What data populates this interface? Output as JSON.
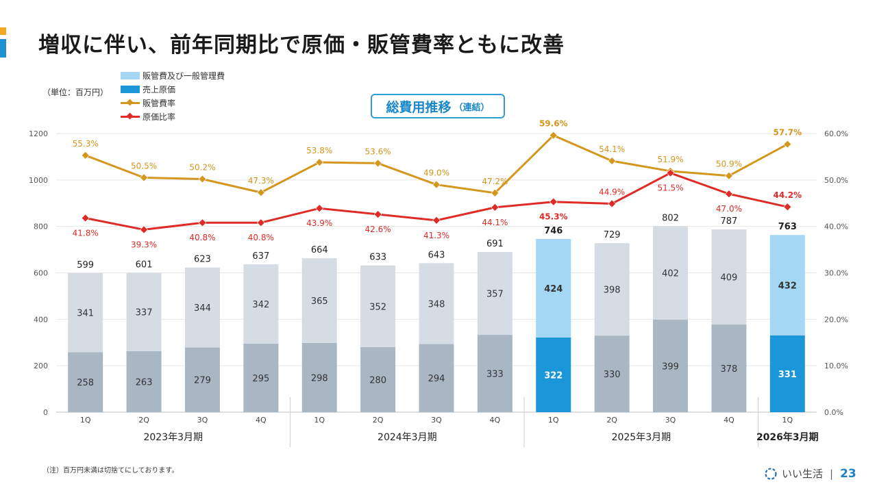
{
  "title": "増収に伴い、前年同期比で原価・販管費率ともに改善",
  "unit_label": "（単位：百万円）",
  "badge": {
    "main": "総費用推移",
    "sub": "（連結）"
  },
  "colors": {
    "accent_top": "#f5a623",
    "accent_bottom": "#1f8fd6",
    "sga_gray": "#d5dce3",
    "cogs_gray": "#a9b7c5",
    "sga_highlight": "#a3d7f4",
    "cogs_highlight": "#1a96d9",
    "sga_rate": "#d4961c",
    "cogs_rate": "#e02a26"
  },
  "legend": [
    {
      "label": "販管費及び一般管理費",
      "icon": "light-blue-swatch"
    },
    {
      "label": "売上原価",
      "icon": "blue-swatch"
    },
    {
      "label": "販管費率",
      "icon": "orange-line-diamond"
    },
    {
      "label": "原価比率",
      "icon": "red-line-diamond"
    }
  ],
  "chart_data": {
    "type": "bar",
    "stacked": true,
    "categories": [
      "1Q",
      "2Q",
      "3Q",
      "4Q",
      "1Q",
      "2Q",
      "3Q",
      "4Q",
      "1Q",
      "2Q",
      "3Q",
      "4Q",
      "1Q"
    ],
    "groups": [
      {
        "label": "2023年3月期",
        "from": 0,
        "to": 3
      },
      {
        "label": "2024年3月期",
        "from": 4,
        "to": 7
      },
      {
        "label": "2025年3月期",
        "from": 8,
        "to": 11
      },
      {
        "label": "2026年3月期",
        "from": 12,
        "to": 12
      }
    ],
    "highlight_indices": [
      8,
      12
    ],
    "series": [
      {
        "name": "売上原価",
        "values": [
          258,
          263,
          279,
          295,
          298,
          280,
          294,
          333,
          322,
          330,
          399,
          378,
          331
        ]
      },
      {
        "name": "販管費及び一般管理費",
        "values": [
          341,
          337,
          344,
          342,
          365,
          352,
          348,
          357,
          424,
          398,
          402,
          409,
          432
        ]
      }
    ],
    "totals": [
      599,
      601,
      623,
      637,
      664,
      633,
      643,
      691,
      746,
      729,
      802,
      787,
      763
    ],
    "rate_series": [
      {
        "name": "販管費率",
        "values": [
          55.3,
          50.5,
          50.2,
          47.3,
          53.8,
          53.6,
          49.0,
          47.2,
          59.6,
          54.1,
          51.9,
          50.9,
          57.7
        ],
        "labels": [
          "55.3%",
          "50.5%",
          "50.2%",
          "47.3%",
          "53.8%",
          "53.6%",
          "49.0%",
          "47.2%",
          "59.6%",
          "54.1%",
          "51.9%",
          "50.9%",
          "57.7%"
        ]
      },
      {
        "name": "原価比率",
        "values": [
          41.8,
          39.3,
          40.8,
          40.8,
          43.9,
          42.6,
          41.3,
          44.1,
          45.3,
          44.9,
          51.5,
          47.0,
          44.2
        ],
        "labels": [
          "41.8%",
          "39.3%",
          "40.8%",
          "40.8%",
          "43.9%",
          "42.6%",
          "41.3%",
          "44.1%",
          "45.3%",
          "44.9%",
          "51.5%",
          "47.0%",
          "44.2%"
        ]
      }
    ],
    "y_left": {
      "min": 0,
      "max": 1200,
      "ticks": [
        "0",
        "200",
        "400",
        "600",
        "800",
        "1000",
        "1200"
      ]
    },
    "y_right": {
      "min": 0,
      "max": 60,
      "ticks": [
        "0.0%",
        "10.0%",
        "20.0%",
        "30.0%",
        "40.0%",
        "50.0%",
        "60.0%"
      ]
    }
  },
  "footnote": "（注）百万円未満は切捨てにしております。",
  "brand": {
    "name": "いい生活",
    "separator": "|",
    "page": "23"
  }
}
